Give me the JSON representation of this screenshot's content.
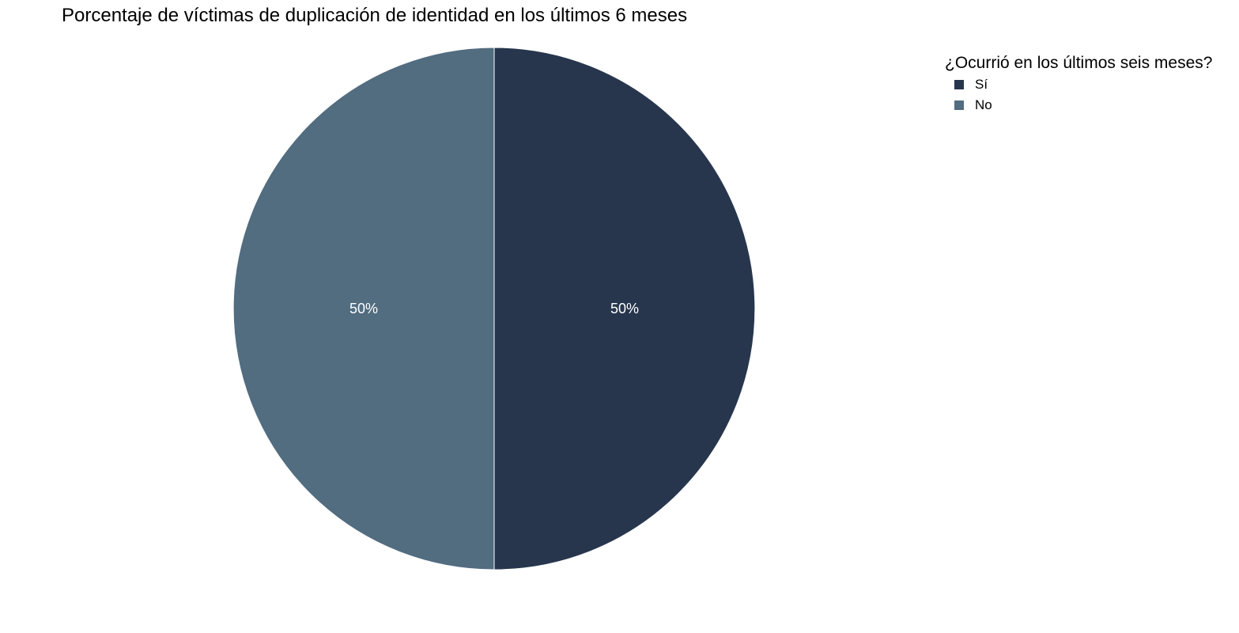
{
  "chart_data": {
    "type": "pie",
    "title": "Porcentaje de víctimas de duplicación de identidad en los últimos 6 meses",
    "legend": {
      "title": "¿Ocurrió en los últimos seis meses?",
      "placement": "top-right"
    },
    "slices": [
      {
        "label": "Sí",
        "value": 50,
        "display": "50%",
        "color": "#27364d"
      },
      {
        "label": "No",
        "value": 50,
        "display": "50%",
        "color": "#526c80"
      }
    ],
    "start_angle_deg": 0,
    "direction": "clockwise"
  }
}
